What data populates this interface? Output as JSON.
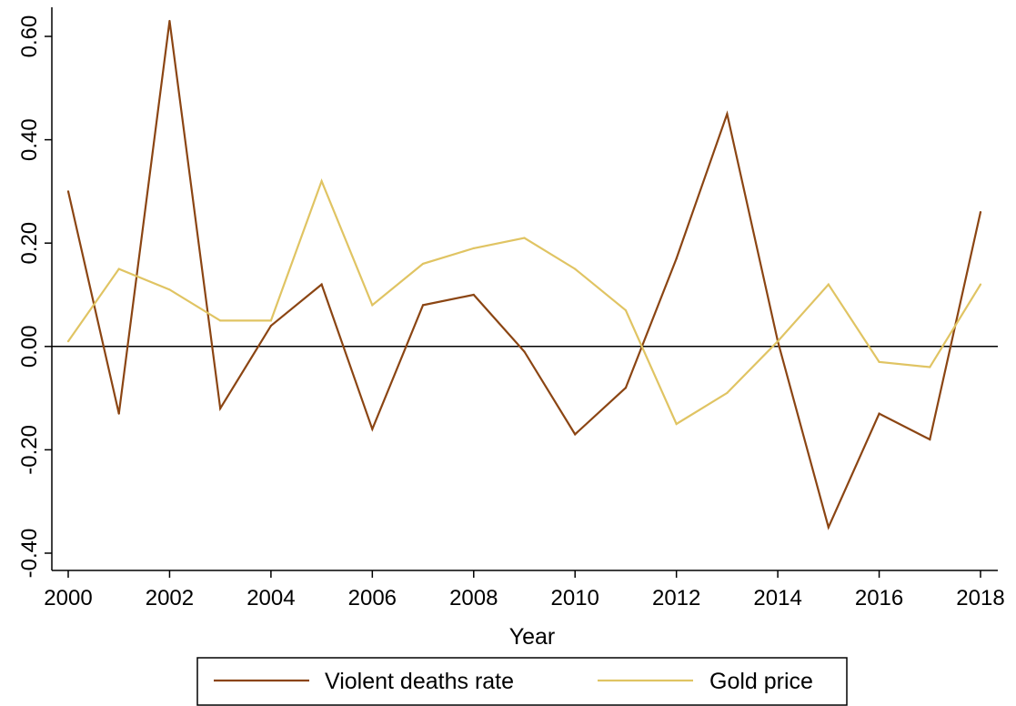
{
  "chart_data": {
    "type": "line",
    "xlabel": "Year",
    "ylabel": "",
    "xlim": [
      2000,
      2018
    ],
    "ylim": [
      -0.4,
      0.6
    ],
    "x_ticks": [
      2000,
      2002,
      2004,
      2006,
      2008,
      2010,
      2012,
      2014,
      2016,
      2018
    ],
    "x_tick_labels": [
      "2000",
      "2002",
      "2004",
      "2006",
      "2008",
      "2010",
      "2012",
      "2014",
      "2016",
      "2018"
    ],
    "y_ticks": [
      -0.4,
      -0.2,
      0.0,
      0.2,
      0.4,
      0.6
    ],
    "y_tick_labels": [
      "-0.40",
      "-0.20",
      "0.00",
      "0.20",
      "0.40",
      "0.60"
    ],
    "reference_line_y": 0,
    "grid": false,
    "legend_position": "bottom",
    "x": [
      2000,
      2001,
      2002,
      2003,
      2004,
      2005,
      2006,
      2007,
      2008,
      2009,
      2010,
      2011,
      2012,
      2013,
      2014,
      2015,
      2016,
      2017,
      2018
    ],
    "series": [
      {
        "name": "Violent deaths rate",
        "color": "#8B4513",
        "values": [
          0.3,
          -0.13,
          0.63,
          -0.12,
          0.04,
          0.12,
          -0.16,
          0.08,
          0.1,
          -0.01,
          -0.17,
          -0.08,
          0.17,
          0.45,
          0.01,
          -0.35,
          -0.13,
          -0.18,
          0.26
        ]
      },
      {
        "name": "Gold price",
        "color": "#E0C463",
        "values": [
          0.01,
          0.15,
          0.11,
          0.05,
          0.05,
          0.32,
          0.08,
          0.16,
          0.19,
          0.21,
          0.15,
          0.07,
          -0.15,
          -0.09,
          0.01,
          0.12,
          -0.03,
          -0.04,
          0.12
        ]
      }
    ]
  }
}
